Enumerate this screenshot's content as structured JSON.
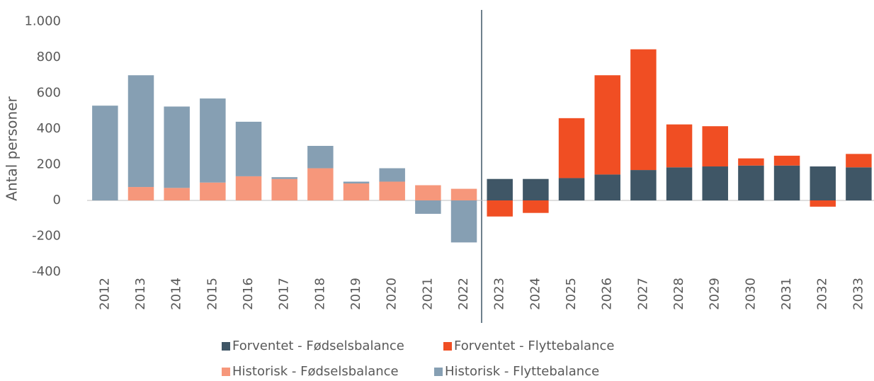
{
  "chart_data": {
    "type": "bar",
    "stacked": true,
    "y_label": "Antal personer",
    "categories": [
      "2012",
      "2013",
      "2014",
      "2015",
      "2016",
      "2017",
      "2018",
      "2019",
      "2020",
      "2021",
      "2022",
      "2023",
      "2024",
      "2025",
      "2026",
      "2027",
      "2028",
      "2029",
      "2030",
      "2031",
      "2032",
      "2033"
    ],
    "series": [
      {
        "name": "Forventet - Fødselsbalance",
        "color": "#3f5666",
        "values": [
          null,
          null,
          null,
          null,
          null,
          null,
          null,
          null,
          null,
          null,
          null,
          120,
          120,
          125,
          145,
          170,
          185,
          190,
          195,
          195,
          190,
          185
        ]
      },
      {
        "name": "Forventet - Flyttebalance",
        "color": "#f04e23",
        "values": [
          null,
          null,
          null,
          null,
          null,
          null,
          null,
          null,
          null,
          null,
          null,
          -90,
          -70,
          335,
          555,
          675,
          240,
          225,
          40,
          55,
          -35,
          75
        ]
      },
      {
        "name": "Historisk - Fødselsbalance",
        "color": "#f6977b",
        "values": [
          0,
          75,
          70,
          100,
          135,
          120,
          180,
          95,
          105,
          85,
          65,
          null,
          null,
          null,
          null,
          null,
          null,
          null,
          null,
          null,
          null,
          null
        ]
      },
      {
        "name": "Historisk - Flyttebalance",
        "color": "#869fb3",
        "values": [
          530,
          625,
          455,
          470,
          305,
          10,
          125,
          10,
          75,
          -75,
          -235,
          null,
          null,
          null,
          null,
          null,
          null,
          null,
          null,
          null,
          null,
          null
        ]
      }
    ],
    "stack_order": [
      2,
      3,
      0,
      1
    ],
    "ylim": [
      -400,
      1000
    ],
    "yticks": [
      -400,
      -200,
      0,
      200,
      400,
      600,
      800,
      {
        "value": 1000,
        "label": "1.000"
      }
    ],
    "grid": false
  }
}
